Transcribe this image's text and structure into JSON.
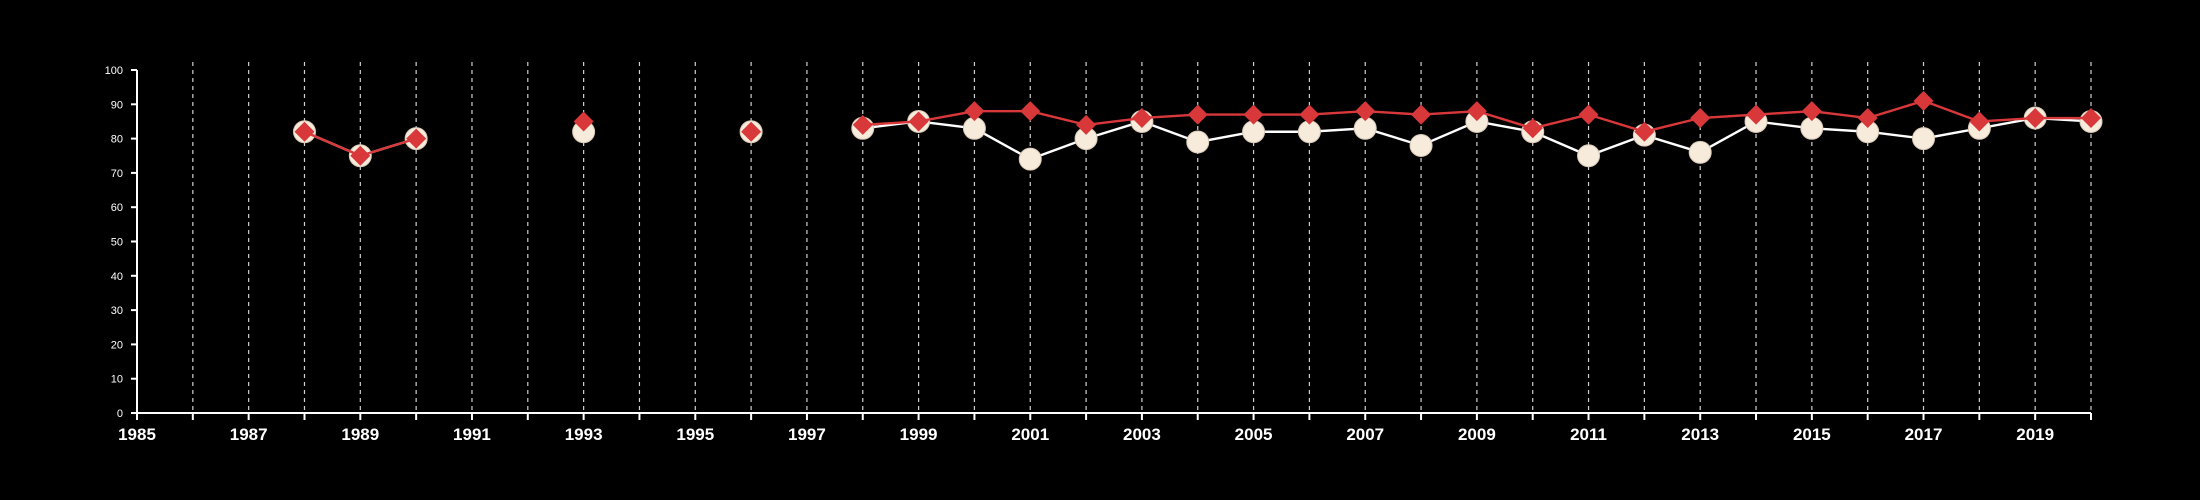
{
  "chart_data": {
    "type": "line",
    "title": "",
    "xlabel": "",
    "ylabel": "",
    "xlim": [
      1985,
      2020
    ],
    "ylim": [
      0,
      100
    ],
    "x_ticks": [
      "1985",
      "1987",
      "1989",
      "1991",
      "1993",
      "1995",
      "1997",
      "1999",
      "2001",
      "2003",
      "2005",
      "2007",
      "2009",
      "2011",
      "2013",
      "2015",
      "2017",
      "2019"
    ],
    "y_ticks": [
      "0",
      "10",
      "20",
      "30",
      "40",
      "50",
      "60",
      "70",
      "80",
      "90",
      "100"
    ],
    "grid": "vertical dashed lines at every year",
    "legend": "none",
    "background": "#000000",
    "series": [
      {
        "marker": "circle",
        "color": "#ffffff",
        "marker_fill": "#f7ebdc",
        "points": [
          [
            1988,
            82
          ],
          [
            1989,
            75
          ],
          [
            1990,
            80
          ],
          [
            1993,
            82
          ],
          [
            1996,
            82
          ],
          [
            1998,
            83
          ],
          [
            1999,
            85
          ],
          [
            2000,
            83
          ],
          [
            2001,
            74
          ],
          [
            2002,
            80
          ],
          [
            2003,
            85
          ],
          [
            2004,
            79
          ],
          [
            2005,
            82
          ],
          [
            2006,
            82
          ],
          [
            2007,
            83
          ],
          [
            2008,
            78
          ],
          [
            2009,
            85
          ],
          [
            2010,
            82
          ],
          [
            2011,
            75
          ],
          [
            2012,
            81
          ],
          [
            2013,
            76
          ],
          [
            2014,
            85
          ],
          [
            2015,
            83
          ],
          [
            2016,
            82
          ],
          [
            2017,
            80
          ],
          [
            2018,
            83
          ],
          [
            2019,
            86
          ],
          [
            2020,
            85
          ]
        ]
      },
      {
        "marker": "diamond",
        "color": "#d9383a",
        "points": [
          [
            1988,
            82
          ],
          [
            1989,
            75
          ],
          [
            1990,
            80
          ],
          [
            1993,
            85
          ],
          [
            1996,
            82
          ],
          [
            1998,
            84
          ],
          [
            1999,
            85
          ],
          [
            2000,
            88
          ],
          [
            2001,
            88
          ],
          [
            2002,
            84
          ],
          [
            2003,
            86
          ],
          [
            2004,
            87
          ],
          [
            2005,
            87
          ],
          [
            2006,
            87
          ],
          [
            2007,
            88
          ],
          [
            2008,
            87
          ],
          [
            2009,
            88
          ],
          [
            2010,
            83
          ],
          [
            2011,
            87
          ],
          [
            2012,
            82
          ],
          [
            2013,
            86
          ],
          [
            2014,
            87
          ],
          [
            2015,
            88
          ],
          [
            2016,
            86
          ],
          [
            2017,
            91
          ],
          [
            2018,
            85
          ],
          [
            2019,
            86
          ],
          [
            2020,
            86
          ]
        ]
      }
    ]
  }
}
